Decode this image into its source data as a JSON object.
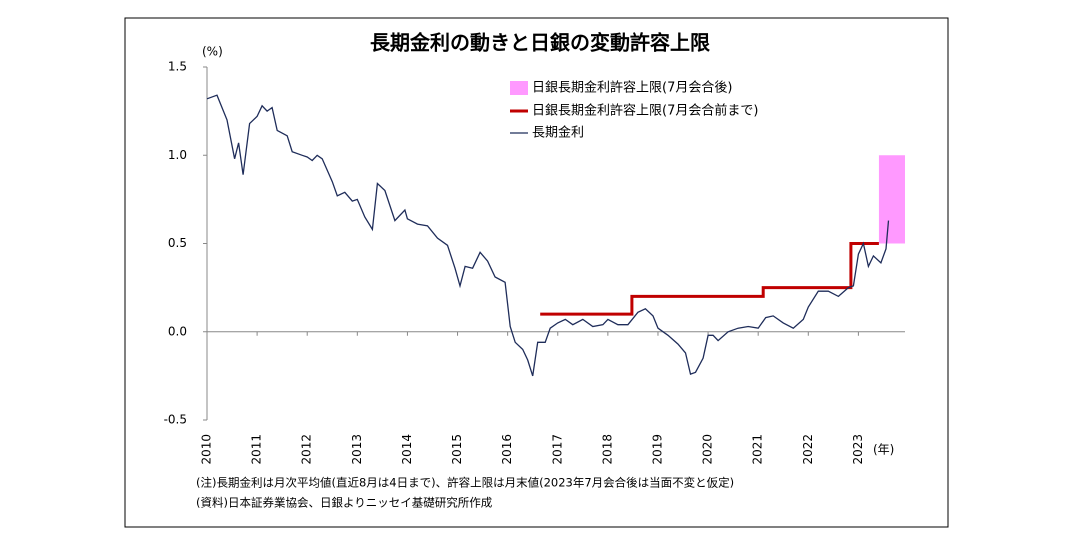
{
  "chart_data": {
    "type": "line",
    "title": "長期金利の動きと日銀の変動許容上限",
    "y_label": "(%)",
    "x_label": "(年)",
    "xlim": [
      2010,
      2023.93
    ],
    "xticks": [
      2010,
      2011,
      2012,
      2013,
      2014,
      2015,
      2016,
      2017,
      2018,
      2019,
      2020,
      2021,
      2022,
      2023
    ],
    "ylim": [
      -0.5,
      1.5
    ],
    "yticks": [
      {
        "value": 1.5,
        "label": "1.5"
      },
      {
        "value": 1.0,
        "label": "1.0"
      },
      {
        "value": 0.5,
        "label": "0.5"
      },
      {
        "value": 0,
        "label": "0.0"
      },
      {
        "value": -0.5,
        "label": "-0.5"
      }
    ],
    "negative_tick_color": "#c00000",
    "band": {
      "name": "日銀長期金利許容上限(7月会合後)",
      "color": "#ff99ff",
      "x": [
        2023.41,
        2023.93
      ],
      "values": [
        0.5,
        1.0
      ]
    },
    "series": [
      {
        "name": "日銀長期金利許容上限(7月会合前まで)",
        "color": "#c00000",
        "x": [
          2016.65,
          2018.48,
          2018.48,
          2021.1,
          2021.1,
          2022.85,
          2022.85,
          2023.41
        ],
        "values": [
          0.1,
          0.1,
          0.2,
          0.2,
          0.25,
          0.25,
          0.5,
          0.5
        ]
      },
      {
        "name": "長期金利",
        "color": "#1f2d5a",
        "x": [
          2010.0,
          2010.2,
          2010.4,
          2010.55,
          2010.63,
          2010.72,
          2010.85,
          2011.0,
          2011.1,
          2011.2,
          2011.3,
          2011.4,
          2011.6,
          2011.7,
          2011.9,
          2012.0,
          2012.1,
          2012.2,
          2012.3,
          2012.5,
          2012.6,
          2012.75,
          2012.9,
          2013.0,
          2013.15,
          2013.3,
          2013.4,
          2013.55,
          2013.75,
          2013.95,
          2014.0,
          2014.2,
          2014.4,
          2014.6,
          2014.8,
          2014.95,
          2015.05,
          2015.15,
          2015.3,
          2015.45,
          2015.6,
          2015.75,
          2015.95,
          2016.05,
          2016.15,
          2016.3,
          2016.4,
          2016.5,
          2016.6,
          2016.75,
          2016.85,
          2017.0,
          2017.15,
          2017.3,
          2017.5,
          2017.7,
          2017.9,
          2018.0,
          2018.2,
          2018.4,
          2018.6,
          2018.75,
          2018.9,
          2019.0,
          2019.2,
          2019.4,
          2019.55,
          2019.65,
          2019.75,
          2019.9,
          2020.0,
          2020.1,
          2020.2,
          2020.4,
          2020.6,
          2020.8,
          2021.0,
          2021.15,
          2021.3,
          2021.5,
          2021.7,
          2021.9,
          2022.0,
          2022.2,
          2022.4,
          2022.6,
          2022.8,
          2022.9,
          2023.0,
          2023.1,
          2023.2,
          2023.3,
          2023.45,
          2023.55,
          2023.6
        ],
        "values": [
          1.32,
          1.34,
          1.2,
          0.98,
          1.07,
          0.89,
          1.18,
          1.22,
          1.28,
          1.25,
          1.27,
          1.14,
          1.11,
          1.02,
          1.0,
          0.99,
          0.97,
          1.0,
          0.98,
          0.85,
          0.77,
          0.79,
          0.74,
          0.75,
          0.65,
          0.58,
          0.84,
          0.8,
          0.63,
          0.69,
          0.64,
          0.61,
          0.6,
          0.53,
          0.49,
          0.36,
          0.26,
          0.37,
          0.36,
          0.45,
          0.4,
          0.31,
          0.28,
          0.03,
          -0.06,
          -0.1,
          -0.16,
          -0.25,
          -0.06,
          -0.06,
          0.02,
          0.05,
          0.07,
          0.04,
          0.07,
          0.03,
          0.04,
          0.07,
          0.04,
          0.04,
          0.11,
          0.13,
          0.09,
          0.02,
          -0.02,
          -0.07,
          -0.12,
          -0.24,
          -0.23,
          -0.15,
          -0.02,
          -0.02,
          -0.05,
          0.0,
          0.02,
          0.03,
          0.02,
          0.08,
          0.09,
          0.05,
          0.02,
          0.07,
          0.14,
          0.23,
          0.23,
          0.2,
          0.25,
          0.26,
          0.44,
          0.5,
          0.37,
          0.43,
          0.39,
          0.47,
          0.63
        ]
      }
    ],
    "notes": [
      "(注)長期金利は月次平均値(直近8月は4日まで)、許容上限は月末値(2023年7月会合後は当面不変と仮定)",
      "(資料)日本証券業協会、日銀よりニッセイ基礎研究所作成"
    ]
  }
}
